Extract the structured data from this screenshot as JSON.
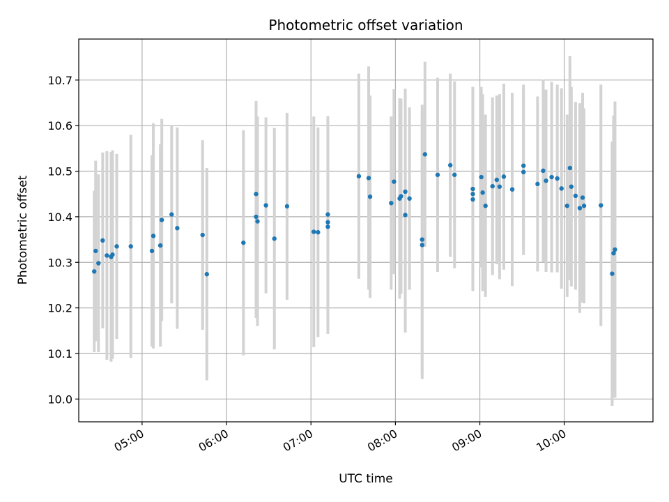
{
  "chart_data": {
    "type": "scatter",
    "title": "Photometric offset variation",
    "xlabel": "UTC time",
    "ylabel": "Photometric offset",
    "grid": true,
    "legend": "none",
    "xlim": [
      "04:15",
      "11:03"
    ],
    "ylim": [
      9.95,
      10.79
    ],
    "x_ticks": [
      "05:00",
      "06:00",
      "07:00",
      "08:00",
      "09:00",
      "10:00"
    ],
    "y_ticks": [
      "10.0",
      "10.1",
      "10.2",
      "10.3",
      "10.4",
      "10.5",
      "10.6",
      "10.7"
    ],
    "colors": {
      "points": "#1f77b4",
      "errorbars": "#d3d3d3",
      "grid": "#b0b0b0"
    },
    "series": [
      {
        "x": [
          "04:26",
          "04:27",
          "04:29",
          "04:32",
          "04:35",
          "04:38",
          "04:39",
          "04:42",
          "04:52",
          "05:07",
          "05:08",
          "05:13",
          "05:14",
          "05:21",
          "05:25",
          "05:43",
          "05:46",
          "06:12",
          "06:21",
          "06:21",
          "06:22",
          "06:28",
          "06:34",
          "06:43",
          "07:02",
          "07:05",
          "07:12",
          "07:12",
          "07:12",
          "07:34",
          "07:41",
          "07:42",
          "07:57",
          "07:59",
          "08:03",
          "08:04",
          "08:07",
          "08:07",
          "08:10",
          "08:19",
          "08:19",
          "08:21",
          "08:30",
          "08:39",
          "08:42",
          "08:55",
          "08:55",
          "08:55",
          "09:01",
          "09:02",
          "09:04",
          "09:09",
          "09:12",
          "09:14",
          "09:17",
          "09:23",
          "09:31",
          "09:31",
          "09:41",
          "09:45",
          "09:47",
          "09:51",
          "09:55",
          "09:58",
          "10:02",
          "10:04",
          "10:05",
          "10:08",
          "10:11",
          "10:13",
          "10:14",
          "10:26",
          "10:34",
          "10:35",
          "10:36"
        ],
        "y": [
          10.28,
          10.325,
          10.298,
          10.348,
          10.315,
          10.312,
          10.317,
          10.335,
          10.335,
          10.325,
          10.358,
          10.337,
          10.393,
          10.405,
          10.375,
          10.36,
          10.274,
          10.343,
          10.45,
          10.4,
          10.39,
          10.425,
          10.352,
          10.423,
          10.367,
          10.366,
          10.405,
          10.388,
          10.378,
          10.489,
          10.485,
          10.444,
          10.43,
          10.477,
          10.44,
          10.445,
          10.455,
          10.404,
          10.44,
          10.35,
          10.338,
          10.537,
          10.492,
          10.513,
          10.492,
          10.438,
          10.45,
          10.461,
          10.487,
          10.453,
          10.424,
          10.467,
          10.481,
          10.466,
          10.488,
          10.46,
          10.512,
          10.498,
          10.472,
          10.501,
          10.479,
          10.487,
          10.484,
          10.462,
          10.424,
          10.507,
          10.466,
          10.446,
          10.419,
          10.442,
          10.424,
          10.425,
          10.275,
          10.32,
          10.328
        ],
        "yerr": [
          0.177,
          0.198,
          0.195,
          0.193,
          0.229,
          0.23,
          0.229,
          0.203,
          0.245,
          0.21,
          0.247,
          0.222,
          0.222,
          0.195,
          0.221,
          0.208,
          0.233,
          0.247,
          0.204,
          0.222,
          0.23,
          0.193,
          0.243,
          0.205,
          0.253,
          0.23,
          0.208,
          0.233,
          0.235,
          0.225,
          0.245,
          0.222,
          0.19,
          0.203,
          0.22,
          0.214,
          0.226,
          0.258,
          0.2,
          0.296,
          0.294,
          0.203,
          0.213,
          0.201,
          0.205,
          0.198,
          0.212,
          0.224,
          0.198,
          0.216,
          0.2,
          0.195,
          0.185,
          0.203,
          0.204,
          0.212,
          0.178,
          0.182,
          0.192,
          0.2,
          0.2,
          0.209,
          0.206,
          0.22,
          0.2,
          0.246,
          0.219,
          0.206,
          0.23,
          0.23,
          0.214,
          0.265,
          0.29,
          0.302,
          0.325
        ]
      }
    ]
  }
}
